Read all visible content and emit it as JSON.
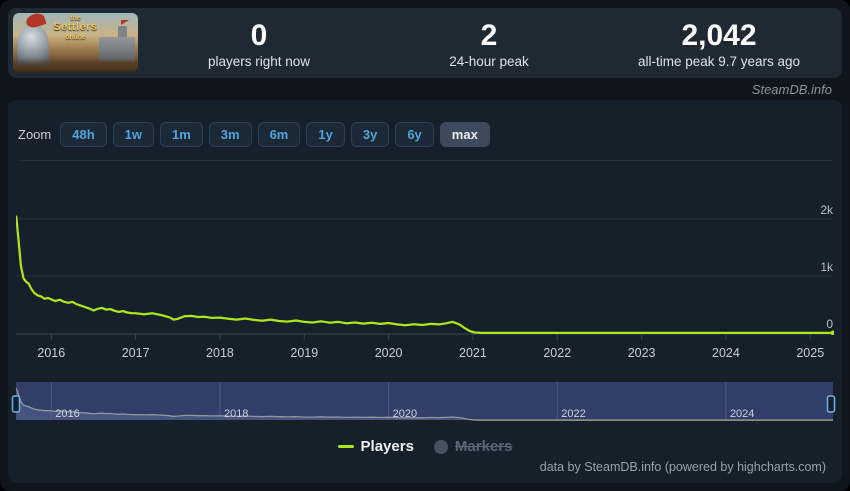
{
  "header": {
    "game_title": "The Settlers Online",
    "capsule": {
      "line1": "the",
      "line2": "Settlers",
      "line3": "online"
    },
    "stats": [
      {
        "value": "0",
        "label": "players right now"
      },
      {
        "value": "2",
        "label": "24-hour peak"
      },
      {
        "value": "2,042",
        "label": "all-time peak 9.7 years ago"
      }
    ]
  },
  "branding": {
    "site_credit": "SteamDB.info"
  },
  "toolbar": {
    "zoom_label": "Zoom",
    "ranges": [
      "48h",
      "1w",
      "1m",
      "3m",
      "6m",
      "1y",
      "3y",
      "6y",
      "max"
    ],
    "selected": "max"
  },
  "legend": {
    "players_label": "Players",
    "markers_label": "Markers"
  },
  "footer": {
    "credit": "data by SteamDB.info (powered by highcharts.com)"
  },
  "colors": {
    "accent_line": "#aee517",
    "navigator_line": "#c9da8d",
    "navigator_mask": "rgba(79,90,170,0.5)",
    "navigator_area": "#49525a",
    "handle_border": "#6db3e8",
    "range_button_text": "#53a4dd",
    "grid": "#242f3a",
    "axis": "#39434f"
  },
  "chart_data": {
    "type": "line",
    "title": "",
    "xlabel": "",
    "ylabel": "Players",
    "x_range": [
      2015.58,
      2025.27
    ],
    "ylim": [
      0,
      2100
    ],
    "grid": "horizontal-only",
    "legend_position": "bottom",
    "x_ticks": [
      2016,
      2017,
      2018,
      2019,
      2020,
      2021,
      2022,
      2023,
      2024,
      2025
    ],
    "y_ticks": [
      {
        "value": 0,
        "label": "0"
      },
      {
        "value": 1000,
        "label": "1k"
      },
      {
        "value": 2000,
        "label": "2k"
      }
    ],
    "navigator_ticks": [
      2016,
      2018,
      2020,
      2022,
      2024
    ],
    "series": [
      {
        "name": "Players",
        "color": "#aee517",
        "points": [
          [
            2015.585,
            2042
          ],
          [
            2015.61,
            1650
          ],
          [
            2015.64,
            1180
          ],
          [
            2015.67,
            960
          ],
          [
            2015.7,
            900
          ],
          [
            2015.73,
            870
          ],
          [
            2015.76,
            780
          ],
          [
            2015.8,
            700
          ],
          [
            2015.84,
            660
          ],
          [
            2015.88,
            640
          ],
          [
            2015.92,
            600
          ],
          [
            2015.96,
            615
          ],
          [
            2016.0,
            590
          ],
          [
            2016.05,
            560
          ],
          [
            2016.1,
            585
          ],
          [
            2016.15,
            550
          ],
          [
            2016.2,
            530
          ],
          [
            2016.25,
            545
          ],
          [
            2016.3,
            505
          ],
          [
            2016.35,
            480
          ],
          [
            2016.4,
            455
          ],
          [
            2016.45,
            430
          ],
          [
            2016.5,
            395
          ],
          [
            2016.55,
            425
          ],
          [
            2016.6,
            440
          ],
          [
            2016.65,
            410
          ],
          [
            2016.7,
            420
          ],
          [
            2016.75,
            390
          ],
          [
            2016.8,
            370
          ],
          [
            2016.85,
            385
          ],
          [
            2016.9,
            360
          ],
          [
            2016.95,
            350
          ],
          [
            2017.0,
            345
          ],
          [
            2017.1,
            330
          ],
          [
            2017.2,
            345
          ],
          [
            2017.3,
            315
          ],
          [
            2017.4,
            275
          ],
          [
            2017.45,
            235
          ],
          [
            2017.5,
            250
          ],
          [
            2017.58,
            295
          ],
          [
            2017.66,
            300
          ],
          [
            2017.74,
            280
          ],
          [
            2017.82,
            285
          ],
          [
            2017.9,
            265
          ],
          [
            2018.0,
            270
          ],
          [
            2018.1,
            250
          ],
          [
            2018.2,
            235
          ],
          [
            2018.3,
            255
          ],
          [
            2018.4,
            230
          ],
          [
            2018.5,
            215
          ],
          [
            2018.6,
            235
          ],
          [
            2018.7,
            210
          ],
          [
            2018.8,
            200
          ],
          [
            2018.9,
            220
          ],
          [
            2019.0,
            195
          ],
          [
            2019.1,
            185
          ],
          [
            2019.2,
            205
          ],
          [
            2019.3,
            180
          ],
          [
            2019.4,
            195
          ],
          [
            2019.5,
            170
          ],
          [
            2019.6,
            185
          ],
          [
            2019.7,
            165
          ],
          [
            2019.8,
            180
          ],
          [
            2019.9,
            160
          ],
          [
            2020.0,
            175
          ],
          [
            2020.1,
            150
          ],
          [
            2020.2,
            135
          ],
          [
            2020.3,
            155
          ],
          [
            2020.4,
            140
          ],
          [
            2020.5,
            160
          ],
          [
            2020.6,
            150
          ],
          [
            2020.68,
            170
          ],
          [
            2020.76,
            195
          ],
          [
            2020.84,
            150
          ],
          [
            2020.9,
            90
          ],
          [
            2020.96,
            35
          ],
          [
            2021.02,
            8
          ],
          [
            2021.1,
            2
          ],
          [
            2021.5,
            2
          ],
          [
            2022.0,
            2
          ],
          [
            2022.5,
            2
          ],
          [
            2023.0,
            2
          ],
          [
            2023.5,
            2
          ],
          [
            2024.0,
            2
          ],
          [
            2024.5,
            2
          ],
          [
            2025.0,
            2
          ],
          [
            2025.27,
            2
          ]
        ]
      },
      {
        "name": "Markers",
        "color": "#47525e",
        "points": [],
        "disabled": true
      }
    ]
  }
}
